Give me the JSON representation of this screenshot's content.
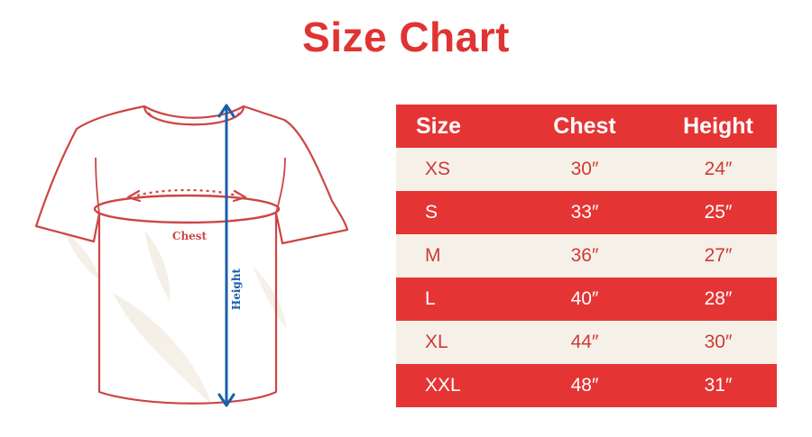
{
  "title": "Size Chart",
  "diagram": {
    "chest_label": "Chest",
    "height_label": "Height"
  },
  "colors": {
    "accent_red": "#e03432",
    "row_cream": "#f6f1e8",
    "measure_blue": "#1a5fa8"
  },
  "table": {
    "headers": [
      "Size",
      "Chest",
      "Height"
    ],
    "rows": [
      {
        "size": "XS",
        "chest": "30″",
        "height": "24″"
      },
      {
        "size": "S",
        "chest": "33″",
        "height": "25″"
      },
      {
        "size": "M",
        "chest": "36″",
        "height": "27″"
      },
      {
        "size": "L",
        "chest": "40″",
        "height": "28″"
      },
      {
        "size": "XL",
        "chest": "44″",
        "height": "30″"
      },
      {
        "size": "XXL",
        "chest": "48″",
        "height": "31″"
      }
    ]
  }
}
